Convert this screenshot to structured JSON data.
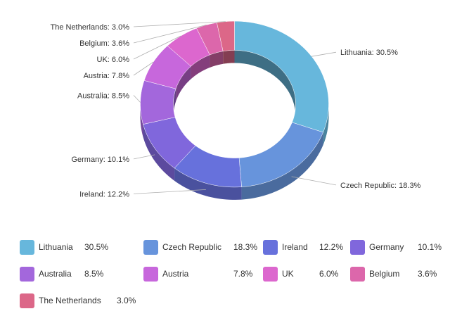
{
  "chart_data": {
    "type": "pie",
    "variant": "donut-3d",
    "categories": [
      "Lithuania",
      "Czech Republic",
      "Ireland",
      "Germany",
      "Australia",
      "Austria",
      "UK",
      "Belgium",
      "The Netherlands"
    ],
    "values": [
      30.5,
      18.3,
      12.2,
      10.1,
      8.5,
      7.8,
      6.0,
      3.6,
      3.0
    ],
    "labels": [
      "Lithuania: 30.5%",
      "Czech Republic: 18.3%",
      "Ireland: 12.2%",
      "Germany: 10.1%",
      "Australia: 8.5%",
      "Austria: 7.8%",
      "UK: 6.0%",
      "Belgium: 3.6%",
      "The Netherlands: 3.0%"
    ],
    "value_labels": [
      "30.5%",
      "18.3%",
      "12.2%",
      "10.1%",
      "8.5%",
      "7.8%",
      "6.0%",
      "3.6%",
      "3.0%"
    ],
    "colors": [
      "#67b7dc",
      "#6794dc",
      "#6771dc",
      "#8067dc",
      "#a367dc",
      "#c767dc",
      "#dc67ce",
      "#dc67ab",
      "#dc6788"
    ],
    "title": "",
    "legend_position": "bottom",
    "unit": "%"
  }
}
